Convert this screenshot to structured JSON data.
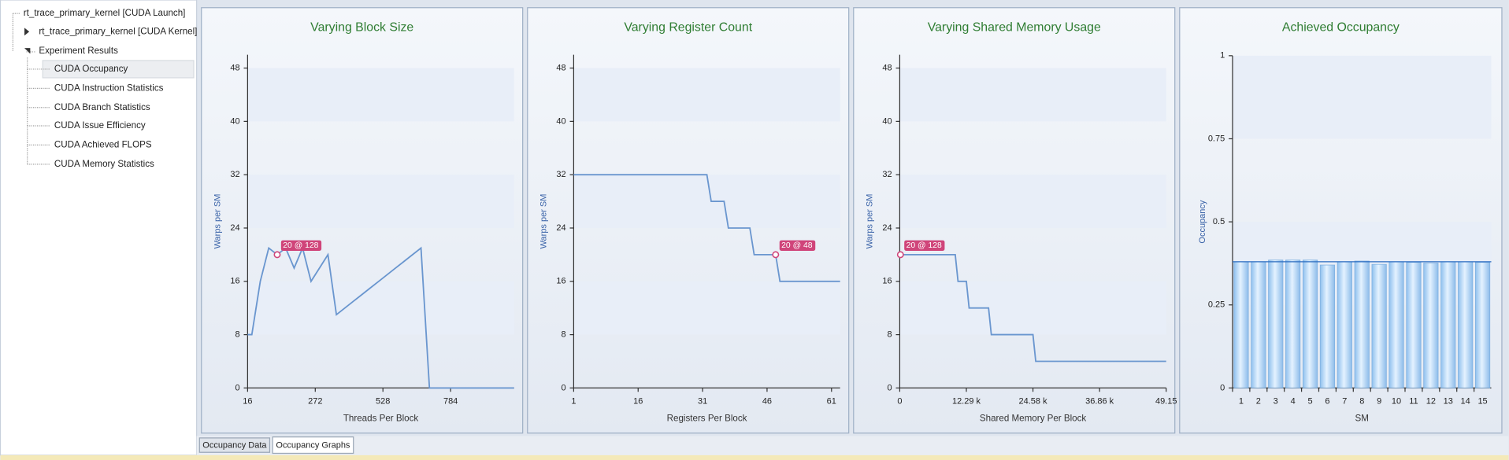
{
  "tree": [
    {
      "label": "rt_trace_primary_kernel [CUDA Launch]"
    },
    {
      "label": "rt_trace_primary_kernel [CUDA Kernel]"
    },
    {
      "label": "Experiment Results"
    },
    {
      "label": "CUDA Occupancy"
    },
    {
      "label": "CUDA Instruction Statistics"
    },
    {
      "label": "CUDA Branch Statistics"
    },
    {
      "label": "CUDA Issue Efficiency"
    },
    {
      "label": "CUDA Achieved FLOPS"
    },
    {
      "label": "CUDA Memory Statistics"
    }
  ],
  "tabs": [
    "Occupancy Data",
    "Occupancy Graphs"
  ],
  "chart_data": [
    {
      "type": "line",
      "title": "Varying Block Size",
      "xlabel": "Threads Per Block",
      "ylabel": "Warps per SM",
      "x": [
        16,
        32,
        64,
        96,
        128,
        160,
        192,
        224,
        256,
        288,
        320,
        352,
        384,
        416,
        448,
        480,
        512,
        544,
        576,
        608,
        640,
        672,
        704,
        1024
      ],
      "values": [
        8,
        8,
        16,
        21,
        20,
        21,
        18,
        21,
        16,
        18,
        20,
        11,
        12,
        13,
        14,
        15,
        16,
        17,
        18,
        19,
        20,
        21,
        0,
        0
      ],
      "xlim": [
        16,
        1024
      ],
      "xticks": [
        16,
        272,
        528,
        784
      ],
      "ylim": [
        0,
        50
      ],
      "yticks": [
        0,
        8,
        16,
        24,
        32,
        40,
        48
      ],
      "color": "#6a96cf",
      "annotation": {
        "text": "20 @ 128",
        "x": 128,
        "y": 20
      }
    },
    {
      "type": "line",
      "title": "Varying Register Count",
      "xlabel": "Registers Per Block",
      "ylabel": "Warps per SM",
      "x": [
        1,
        32,
        33,
        36,
        37,
        42,
        43,
        48,
        49,
        63
      ],
      "values": [
        32,
        32,
        28,
        28,
        24,
        24,
        20,
        20,
        16,
        16
      ],
      "xlim": [
        1,
        63
      ],
      "xticks": [
        1,
        16,
        31,
        46,
        61
      ],
      "ylim": [
        0,
        50
      ],
      "yticks": [
        0,
        8,
        16,
        24,
        32,
        40,
        48
      ],
      "color": "#6a96cf",
      "annotation": {
        "text": "20 @ 48",
        "x": 48,
        "y": 20
      }
    },
    {
      "type": "line",
      "title": "Varying Shared Memory Usage",
      "xlabel": "Shared Memory Per Block",
      "ylabel": "Warps per SM",
      "x": [
        0,
        10240,
        10752,
        12288,
        12800,
        16384,
        16896,
        24576,
        25088,
        49152
      ],
      "values": [
        20,
        20,
        16,
        16,
        12,
        12,
        8,
        8,
        4,
        4
      ],
      "xlim": [
        0,
        49152
      ],
      "xticks": [
        0,
        {
          "value": 12288,
          "label": "12.29 k"
        },
        {
          "value": 24576,
          "label": "24.58 k"
        },
        {
          "value": 36864,
          "label": "36.86 k"
        },
        {
          "value": 49152,
          "label": "49.15"
        }
      ],
      "ylim": [
        0,
        50
      ],
      "yticks": [
        0,
        8,
        16,
        24,
        32,
        40,
        48
      ],
      "color": "#6a96cf",
      "annotation": {
        "text": "20 @ 128",
        "x": 128,
        "y": 20
      }
    },
    {
      "type": "bar",
      "title": "Achieved Occupancy",
      "xlabel": "SM",
      "ylabel": "Occupancy",
      "categories": [
        "1",
        "2",
        "3",
        "4",
        "5",
        "6",
        "7",
        "8",
        "9",
        "10",
        "11",
        "12",
        "13",
        "14",
        "15"
      ],
      "values": [
        0.38,
        0.38,
        0.385,
        0.385,
        0.385,
        0.37,
        0.38,
        0.382,
        0.372,
        0.38,
        0.378,
        0.376,
        0.38,
        0.38,
        0.378
      ],
      "mean_line": 0.38,
      "ylim": [
        0,
        1
      ],
      "yticks": [
        0,
        0.25,
        0.5,
        0.75,
        1
      ],
      "color": "#a8d0f5"
    }
  ]
}
